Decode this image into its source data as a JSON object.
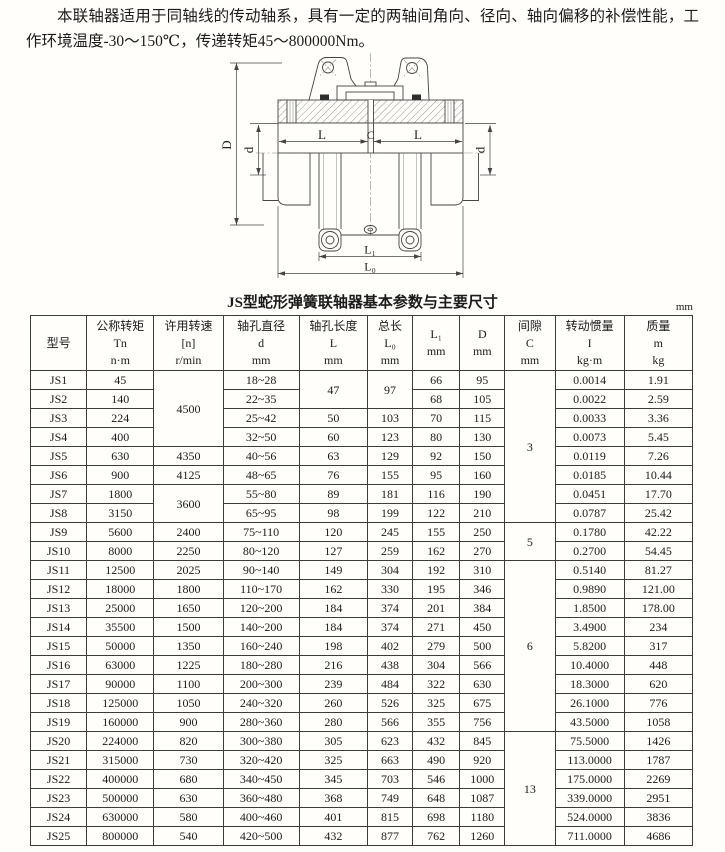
{
  "intro": {
    "text": "本联轴器适用于同轴线的传动轴系，具有一定的两轴间角向、径向、轴向偏移的补偿性能，工作环境温度-30～150℃，传递转矩45～800000Nm。"
  },
  "diagram": {
    "labels": {
      "D": "D",
      "d_left": "d",
      "d_right": "d",
      "L_left": "L",
      "C": "C",
      "L_right": "L",
      "L1": "L₁",
      "L0": "L₀"
    }
  },
  "table": {
    "title": "JS型蛇形弹簧联轴器基本参数与主要尺寸",
    "unit": "mm",
    "headers": [
      {
        "lines": [
          "型号"
        ]
      },
      {
        "lines": [
          "公称转矩",
          "Tn",
          "n·m"
        ]
      },
      {
        "lines": [
          "许用转速",
          "[n]",
          "r/min"
        ]
      },
      {
        "lines": [
          "轴孔直径",
          "d",
          "mm"
        ]
      },
      {
        "lines": [
          "轴孔长度",
          "L",
          "mm"
        ]
      },
      {
        "lines": [
          "总长",
          "L₀",
          "mm"
        ]
      },
      {
        "lines": [
          "L₁",
          "mm"
        ]
      },
      {
        "lines": [
          "D",
          "mm"
        ]
      },
      {
        "lines": [
          "间隙",
          "C",
          "mm"
        ]
      },
      {
        "lines": [
          "转动惯量",
          "I",
          "kg·m"
        ]
      },
      {
        "lines": [
          "质量",
          "m",
          "kg"
        ]
      }
    ],
    "rows": [
      [
        "JS1",
        "45",
        {
          "v": "4500",
          "rs": 4
        },
        "18~28",
        {
          "v": "47",
          "rs": 2
        },
        {
          "v": "97",
          "rs": 2
        },
        "66",
        "95",
        {
          "v": "3",
          "rs": 8
        },
        "0.0014",
        "1.91"
      ],
      [
        "JS2",
        "140",
        null,
        "22~35",
        null,
        null,
        "68",
        "105",
        null,
        "0.0022",
        "2.59"
      ],
      [
        "JS3",
        "224",
        null,
        "25~42",
        "50",
        "103",
        "70",
        "115",
        null,
        "0.0033",
        "3.36"
      ],
      [
        "JS4",
        "400",
        null,
        "32~50",
        "60",
        "123",
        "80",
        "130",
        null,
        "0.0073",
        "5.45"
      ],
      [
        "JS5",
        "630",
        "4350",
        "40~56",
        "63",
        "129",
        "92",
        "150",
        null,
        "0.0119",
        "7.26"
      ],
      [
        "JS6",
        "900",
        "4125",
        "48~65",
        "76",
        "155",
        "95",
        "160",
        null,
        "0.0185",
        "10.44"
      ],
      [
        "JS7",
        "1800",
        {
          "v": "3600",
          "rs": 2
        },
        "55~80",
        "89",
        "181",
        "116",
        "190",
        null,
        "0.0451",
        "17.70"
      ],
      [
        "JS8",
        "3150",
        null,
        "65~95",
        "98",
        "199",
        "122",
        "210",
        null,
        "0.0787",
        "25.42"
      ],
      [
        "JS9",
        "5600",
        "2400",
        "75~110",
        "120",
        "245",
        "155",
        "250",
        {
          "v": "5",
          "rs": 2
        },
        "0.1780",
        "42.22"
      ],
      [
        "JS10",
        "8000",
        "2250",
        "80~120",
        "127",
        "259",
        "162",
        "270",
        null,
        "0.2700",
        "54.45"
      ],
      [
        "JS11",
        "12500",
        "2025",
        "90~140",
        "149",
        "304",
        "192",
        "310",
        {
          "v": "6",
          "rs": 9
        },
        "0.5140",
        "81.27"
      ],
      [
        "JS12",
        "18000",
        "1800",
        "110~170",
        "162",
        "330",
        "195",
        "346",
        null,
        "0.9890",
        "121.00"
      ],
      [
        "JS13",
        "25000",
        "1650",
        "120~200",
        "184",
        "374",
        "201",
        "384",
        null,
        "1.8500",
        "178.00"
      ],
      [
        "JS14",
        "35500",
        "1500",
        "140~200",
        "184",
        "374",
        "271",
        "450",
        null,
        "3.4900",
        "234"
      ],
      [
        "JS15",
        "50000",
        "1350",
        "160~240",
        "198",
        "402",
        "279",
        "500",
        null,
        "5.8200",
        "317"
      ],
      [
        "JS16",
        "63000",
        "1225",
        "180~280",
        "216",
        "438",
        "304",
        "566",
        null,
        "10.4000",
        "448"
      ],
      [
        "JS17",
        "90000",
        "1100",
        "200~300",
        "239",
        "484",
        "322",
        "630",
        null,
        "18.3000",
        "620"
      ],
      [
        "JS18",
        "125000",
        "1050",
        "240~320",
        "260",
        "526",
        "325",
        "675",
        null,
        "26.1000",
        "776"
      ],
      [
        "JS19",
        "160000",
        "900",
        "280~360",
        "280",
        "566",
        "355",
        "756",
        null,
        "43.5000",
        "1058"
      ],
      [
        "JS20",
        "224000",
        "820",
        "300~380",
        "305",
        "623",
        "432",
        "845",
        {
          "v": "13",
          "rs": 6
        },
        "75.5000",
        "1426"
      ],
      [
        "JS21",
        "315000",
        "730",
        "320~420",
        "325",
        "663",
        "490",
        "920",
        null,
        "113.0000",
        "1787"
      ],
      [
        "JS22",
        "400000",
        "680",
        "340~450",
        "345",
        "703",
        "546",
        "1000",
        null,
        "175.0000",
        "2269"
      ],
      [
        "JS23",
        "500000",
        "630",
        "360~480",
        "368",
        "749",
        "648",
        "1087",
        null,
        "339.0000",
        "2951"
      ],
      [
        "JS24",
        "630000",
        "580",
        "400~460",
        "401",
        "815",
        "698",
        "1180",
        null,
        "524.0000",
        "3836"
      ],
      [
        "JS25",
        "800000",
        "540",
        "420~500",
        "432",
        "877",
        "762",
        "1260",
        null,
        "711.0000",
        "4686"
      ]
    ]
  }
}
